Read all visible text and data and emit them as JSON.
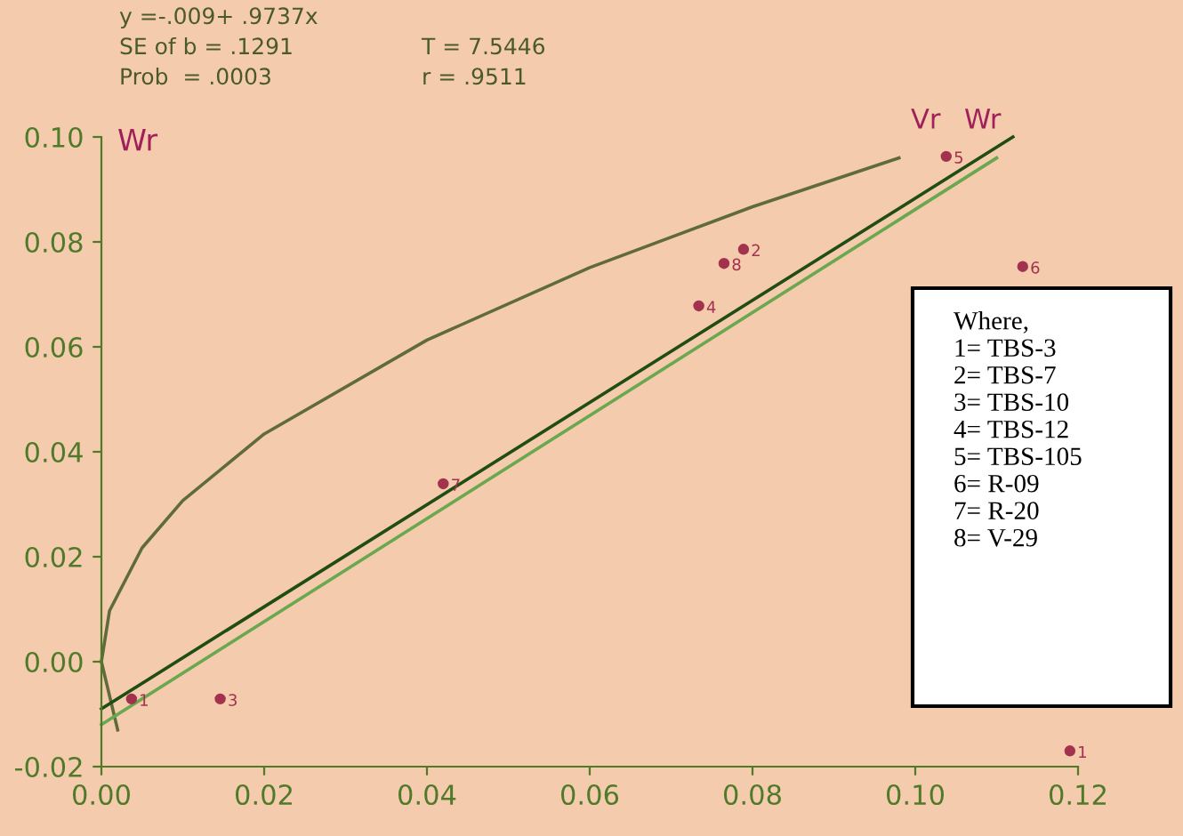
{
  "chart_data": {
    "type": "scatter",
    "ylabel": "Wr",
    "xlim": [
      0,
      0.12
    ],
    "ylim": [
      -0.02,
      0.1
    ],
    "xticks": [
      {
        "value": 0,
        "label": "0.00"
      },
      {
        "value": 0.02,
        "label": "0.02"
      },
      {
        "value": 0.04,
        "label": "0.04"
      },
      {
        "value": 0.06,
        "label": "0.06"
      },
      {
        "value": 0.08,
        "label": "0.08"
      },
      {
        "value": 0.1,
        "label": "0.10"
      },
      {
        "value": 0.12,
        "label": "0.12"
      }
    ],
    "yticks": [
      {
        "value": -0.02,
        "label": "-0.02"
      },
      {
        "value": 0,
        "label": "0.00"
      },
      {
        "value": 0.02,
        "label": "0.02"
      },
      {
        "value": 0.04,
        "label": "0.04"
      },
      {
        "value": 0.06,
        "label": "0.06"
      },
      {
        "value": 0.08,
        "label": "0.08"
      },
      {
        "value": 0.1,
        "label": "0.10"
      }
    ],
    "grid": false,
    "series": [
      {
        "type": "line",
        "color": "#5f6b3c",
        "x": [
          0.002,
          0,
          0.001,
          0.005,
          0.01,
          0.02,
          0.04,
          0.06,
          0.08,
          0.098
        ],
        "values": [
          -0.013,
          0,
          0.0097,
          0.0217,
          0.0307,
          0.0434,
          0.0613,
          0.0751,
          0.0867,
          0.096
        ]
      },
      {
        "type": "line",
        "color": "#6aa84f",
        "x": [
          0.0,
          0.11
        ],
        "values": [
          -0.012,
          0.096
        ]
      },
      {
        "type": "line",
        "color": "#1f4d12",
        "x": [
          0.0,
          0.112
        ],
        "values": [
          -0.009,
          0.1
        ]
      },
      {
        "color": "#a3324e",
        "marker": "circle",
        "x": [
          0.0037,
          0.0789,
          0.0146,
          0.0734,
          0.1038,
          0.1132,
          0.042,
          0.0765,
          0.119
        ],
        "values": [
          -0.0071,
          0.0786,
          -0.0071,
          0.0678,
          0.0963,
          0.0753,
          0.0339,
          0.0759,
          -0.017
        ]
      }
    ],
    "annotations": [
      "y =-.009+ .9737x",
      "SE of b = .1291",
      "T = 7.5446",
      "Prob  = .0003",
      "r = .9511",
      "Vr",
      "Wr",
      "Where,\n1= TBS-3\n2= TBS-7\n3= TBS-10\n4= TBS-12\n5= TBS-105\n6= R-09\n7= R-20\n8= V-29",
      {
        "text": "1",
        "x": 0.0037,
        "y": -0.0071
      },
      {
        "text": "2",
        "x": 0.0789,
        "y": 0.0786
      },
      {
        "text": "3",
        "x": 0.0146,
        "y": -0.0071
      },
      {
        "text": "4",
        "x": 0.0734,
        "y": 0.0678
      },
      {
        "text": "5",
        "x": 0.1038,
        "y": 0.0963
      },
      {
        "text": "6",
        "x": 0.1132,
        "y": 0.0753
      },
      {
        "text": "7",
        "x": 0.042,
        "y": 0.0339
      },
      {
        "text": "8",
        "x": 0.0765,
        "y": 0.0759
      },
      {
        "text": "1",
        "x": 0.119,
        "y": -0.017
      }
    ]
  }
}
